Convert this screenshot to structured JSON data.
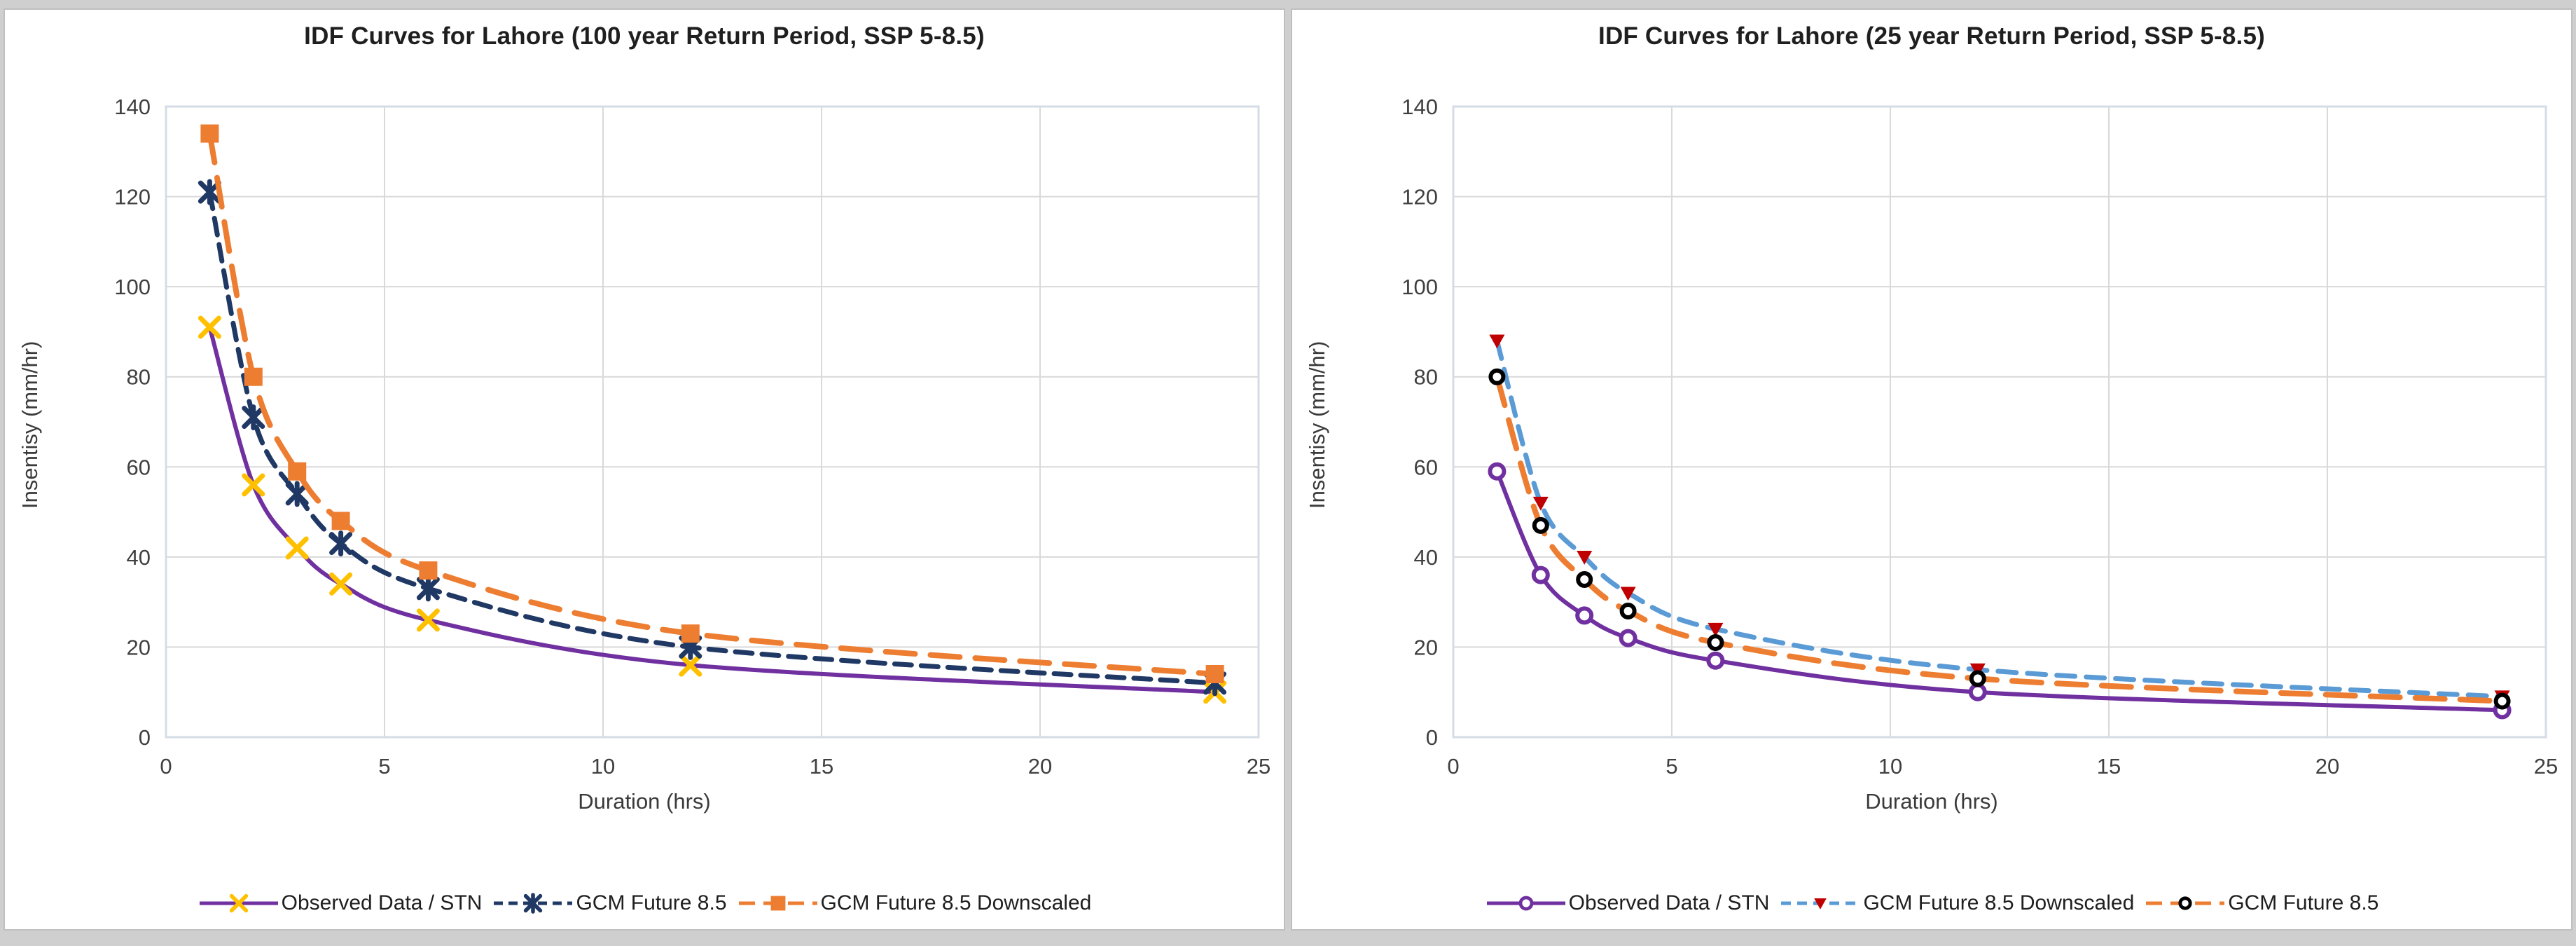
{
  "page": {
    "background_color": "#cfcfcf",
    "panel_background": "#ffffff",
    "panel_border_color": "#bfbfbf",
    "grid_color": "#d9d9d9",
    "plot_border_color": "#d6dce5",
    "tick_label_color": "#404040",
    "axis_title_color": "#3a3a3a",
    "title_color": "#1f1f1f"
  },
  "chart_data": [
    {
      "type": "line",
      "title": "IDF Curves for Lahore (100 year Return Period, SSP 5-8.5)",
      "xlabel": "Duration (hrs)",
      "ylabel": "Insentisy (mm/hr)",
      "x": [
        1,
        2,
        3,
        4,
        6,
        12,
        24
      ],
      "xlim": [
        0,
        25
      ],
      "ylim": [
        0,
        140
      ],
      "x_ticks": [
        0,
        5,
        10,
        15,
        20,
        25
      ],
      "y_ticks": [
        0,
        20,
        40,
        60,
        80,
        100,
        120,
        140
      ],
      "grid": true,
      "legend_position": "bottom",
      "series": [
        {
          "name": "Observed Data / STN",
          "values": [
            91,
            56,
            42,
            34,
            26,
            16,
            10
          ],
          "line_color": "#7030A0",
          "dash": "solid",
          "line_width": 6,
          "marker": "x",
          "marker_color": "#FFC000"
        },
        {
          "name": "GCM Future 8.5",
          "values": [
            121,
            71,
            54,
            43,
            33,
            20,
            12
          ],
          "line_color": "#1F3864",
          "dash": "24 14",
          "line_width": 7,
          "marker": "asterisk",
          "marker_color": "#1F3864"
        },
        {
          "name": "GCM Future 8.5 Downscaled",
          "values": [
            134,
            80,
            59,
            48,
            37,
            23,
            14
          ],
          "line_color": "#ED7D31",
          "dash": "42 22",
          "line_width": 8,
          "marker": "square",
          "marker_color": "#ED7D31"
        }
      ]
    },
    {
      "type": "line",
      "title": "IDF Curves for Lahore (25 year Return Period, SSP 5-8.5)",
      "xlabel": "Duration (hrs)",
      "ylabel": "Insentisy (mm/hr)",
      "x": [
        1,
        2,
        3,
        4,
        6,
        12,
        24
      ],
      "xlim": [
        0,
        25
      ],
      "ylim": [
        0,
        140
      ],
      "x_ticks": [
        0,
        5,
        10,
        15,
        20,
        25
      ],
      "y_ticks": [
        0,
        20,
        40,
        60,
        80,
        100,
        120,
        140
      ],
      "grid": true,
      "legend_position": "bottom",
      "series": [
        {
          "name": "Observed Data / STN",
          "values": [
            59,
            36,
            27,
            22,
            17,
            10,
            6
          ],
          "line_color": "#7030A0",
          "dash": "solid",
          "line_width": 6,
          "marker": "ring",
          "marker_color": "#7030A0"
        },
        {
          "name": "GCM Future 8.5 Downscaled",
          "values": [
            88,
            52,
            40,
            32,
            24,
            15,
            9
          ],
          "line_color": "#5B9BD5",
          "dash": "26 16",
          "line_width": 7,
          "marker": "triangle",
          "marker_color": "#C00000"
        },
        {
          "name": "GCM Future 8.5",
          "values": [
            80,
            47,
            35,
            28,
            21,
            13,
            8
          ],
          "line_color": "#ED7D31",
          "dash": "42 22",
          "line_width": 8,
          "marker": "donut",
          "marker_color": "#000000"
        }
      ]
    }
  ]
}
